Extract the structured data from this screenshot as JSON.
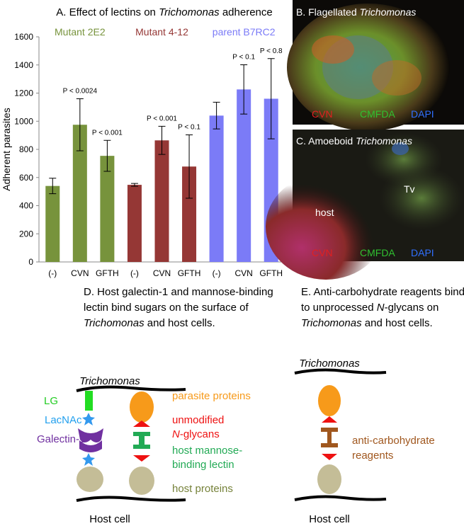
{
  "chart_data": {
    "type": "bar",
    "title": [
      "A. Effect of lectins on ",
      "Trichomonas",
      " adherence"
    ],
    "ylabel": "Adherent parasites",
    "categories": [
      "(-)",
      "CVN",
      "GFTH"
    ],
    "series": [
      {
        "name": "Mutant 2E2",
        "color": "#77933c",
        "values": [
          540,
          975,
          754
        ],
        "errors": [
          55,
          185,
          110
        ],
        "p_values": [
          null,
          "P < 0.0024",
          "P < 0.001"
        ]
      },
      {
        "name": "Mutant 4-12",
        "color": "#953735",
        "values": [
          548,
          864,
          678
        ],
        "errors": [
          10,
          100,
          225
        ],
        "p_values": [
          null,
          "P < 0.001",
          "P < 0.1"
        ]
      },
      {
        "name": "parent B7RC2",
        "color": "#7b7bf7",
        "values": [
          1040,
          1226,
          1160
        ],
        "errors": [
          95,
          175,
          285
        ],
        "p_values": [
          null,
          "P < 0.1",
          "P < 0.8"
        ]
      }
    ],
    "ylim": [
      0,
      1600
    ],
    "yticks": [
      0,
      200,
      400,
      600,
      800,
      1000,
      1200,
      1400,
      1600
    ]
  },
  "panel_b": {
    "title": [
      "B. Flagellated ",
      "Trichomonas"
    ],
    "stains": [
      "CVN",
      "CMFDA",
      "DAPI"
    ]
  },
  "panel_c": {
    "title": [
      "C. Amoeboid ",
      "Trichomonas"
    ],
    "labels": [
      "Tv",
      "host"
    ],
    "stains": [
      "CVN",
      "CMFDA",
      "DAPI"
    ]
  },
  "panel_d": {
    "caption": [
      [
        "D. Host galectin-1 and mannose-binding"
      ],
      [
        "lectin bind sugars on the surface of"
      ],
      [
        "Trichomonas",
        " and host cells."
      ]
    ],
    "top": "Trichomonas",
    "bottom": "Host cell",
    "left_labels": [
      "LG",
      "LacNAc",
      "Galectin-1"
    ],
    "right_labels": [
      "parasite proteins",
      [
        "unmodified"
      ],
      [
        "N",
        "-glycans"
      ],
      [
        "host mannose-"
      ],
      [
        "binding lectin"
      ],
      "host proteins"
    ]
  },
  "panel_e": {
    "caption": [
      [
        "E. Anti-carbohydrate reagents bind"
      ],
      [
        "to unprocessed ",
        "N",
        "-glycans on"
      ],
      [
        "Trichomonas",
        " and host cells."
      ]
    ],
    "top": "Trichomonas",
    "bottom": "Host cell",
    "label": [
      "anti-carbohydrate",
      "reagents"
    ]
  }
}
